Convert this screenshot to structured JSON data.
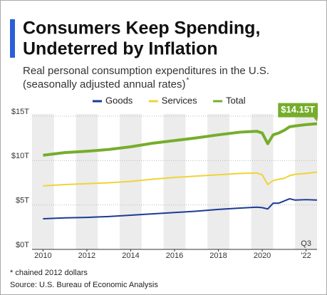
{
  "chart_data": {
    "type": "line",
    "title": [
      "Consumers Keep Spending,",
      "Undeterred by Inflation"
    ],
    "subtitle": [
      "Real personal consumption expenditures in the U.S.",
      "(seasonally adjusted annual rates)"
    ],
    "subtitle_mark": "*",
    "x": [
      2010,
      2011,
      2012,
      2013,
      2014,
      2015,
      2016,
      2017,
      2018,
      2019,
      2019.75,
      2020,
      2020.25,
      2020.5,
      2020.75,
      2021,
      2021.25,
      2021.5,
      2022,
      2022.5
    ],
    "series": [
      {
        "name": "Goods",
        "color": "#1c3a96",
        "values": [
          3.45,
          3.55,
          3.6,
          3.7,
          3.85,
          4.0,
          4.15,
          4.3,
          4.5,
          4.65,
          4.75,
          4.7,
          4.55,
          5.2,
          5.2,
          5.45,
          5.7,
          5.55,
          5.6,
          5.55
        ]
      },
      {
        "name": "Services",
        "color": "#f0d338",
        "values": [
          7.15,
          7.3,
          7.4,
          7.5,
          7.65,
          7.9,
          8.1,
          8.25,
          8.4,
          8.55,
          8.6,
          8.4,
          7.3,
          7.75,
          7.9,
          8.0,
          8.3,
          8.45,
          8.55,
          8.7
        ]
      },
      {
        "name": "Total",
        "color": "#76ad2c",
        "values": [
          10.6,
          10.9,
          11.05,
          11.25,
          11.55,
          11.95,
          12.25,
          12.55,
          12.9,
          13.2,
          13.3,
          13.1,
          11.9,
          12.9,
          13.1,
          13.4,
          13.8,
          13.9,
          14.05,
          14.15
        ],
        "value_labels": [
          null,
          null,
          null,
          null,
          null,
          null,
          null,
          null,
          null,
          null,
          null,
          null,
          null,
          null,
          null,
          null,
          null,
          null,
          null,
          "$14.15T"
        ]
      }
    ],
    "xlim": [
      2009.5,
      2022.5
    ],
    "xticks": [
      2010,
      2012,
      2014,
      2016,
      2018,
      2020,
      {
        "value": 2022,
        "label": "'22"
      }
    ],
    "x_note": "Q3",
    "ylim": [
      0,
      15
    ],
    "yticks": [
      {
        "value": 0,
        "label": "$0T"
      },
      {
        "value": 5,
        "label": "$5T"
      },
      {
        "value": 10,
        "label": "$10T"
      },
      {
        "value": 15,
        "label": "$15T"
      }
    ],
    "grid": true,
    "footnote": "* chained 2012 dollars",
    "source": "Source: U.S. Bureau of Economic Analysis"
  }
}
